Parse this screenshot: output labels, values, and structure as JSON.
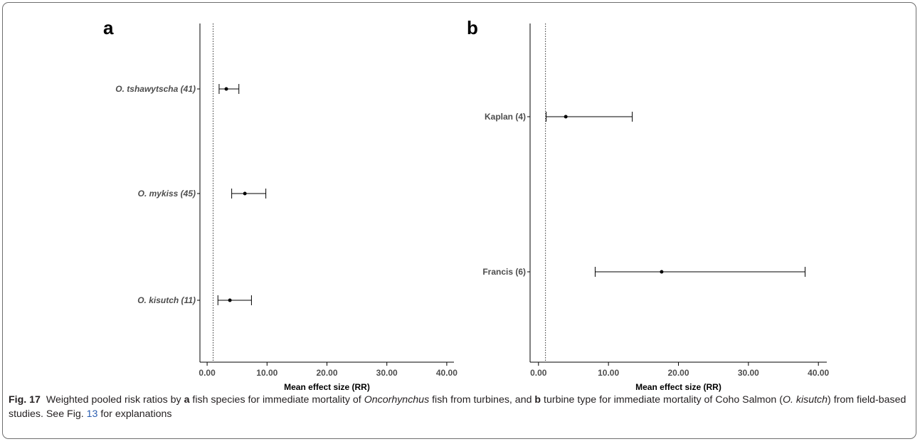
{
  "chart_data": [
    {
      "type": "scatter",
      "panel_label": "a",
      "xlabel": "Mean effect size (RR)",
      "xticks": [
        "0.00",
        "10.00",
        "20.00",
        "30.00",
        "40.00"
      ],
      "xlim": [
        -1.2,
        41.2
      ],
      "reference_line": 1,
      "categories": [
        "O. tshawytscha (41)",
        "O. mykiss (45)",
        "O. kisutch (11)"
      ],
      "values": [
        3.2,
        6.3,
        3.8
      ],
      "ci_low": [
        2.0,
        4.1,
        1.8
      ],
      "ci_high": [
        5.3,
        9.8,
        7.4
      ],
      "italic_labels": true
    },
    {
      "type": "scatter",
      "panel_label": "b",
      "xlabel": "Mean effect size (RR)",
      "xticks": [
        "0.00",
        "10.00",
        "20.00",
        "30.00",
        "40.00"
      ],
      "xlim": [
        -1.2,
        41.2
      ],
      "reference_line": 1,
      "categories": [
        "Kaplan (4)",
        "Francis (6)"
      ],
      "values": [
        3.9,
        17.6
      ],
      "ci_low": [
        1.1,
        8.1
      ],
      "ci_high": [
        13.4,
        38.1
      ],
      "italic_labels": false
    }
  ],
  "caption": {
    "fig_label": "Fig. 17",
    "t1": "Weighted pooled risk ratios by ",
    "b1": "a",
    "t2": " fish species for immediate mortality of ",
    "i1": "Oncorhynchus",
    "t3": " fish from turbines, and ",
    "b2": "b",
    "t4": " turbine type for immediate mortality of Coho Salmon (",
    "i2": "O. kisutch",
    "t5": ") from field-based studies. See Fig. ",
    "ref": "13",
    "t6": " for explanations"
  }
}
